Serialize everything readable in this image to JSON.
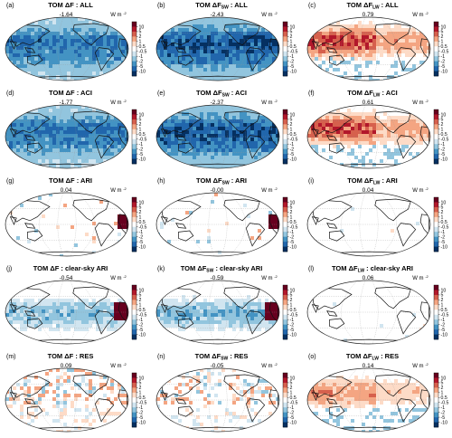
{
  "figure": {
    "colorbar_ticks": [
      "10",
      "5",
      "2",
      "1",
      "0.5",
      "-0.5",
      "-1",
      "-2",
      "-5",
      "-10"
    ],
    "colorbar_colors": [
      "#67001f",
      "#b2182b",
      "#d6604d",
      "#f4a582",
      "#fddbc7",
      "#ffffff",
      "#d1e5f0",
      "#92c5de",
      "#4393c3",
      "#2166ac",
      "#053061"
    ],
    "unit_prefix": "W m",
    "unit_exp": "-2",
    "land_color": "#111111"
  },
  "chart_data": [
    {
      "id": "a",
      "type": "heatmap",
      "label": "(a)",
      "title_prefix": "TOM ΔF",
      "title_sub": "",
      "title_suffix": " : ALL",
      "value": "-1.64",
      "tint": "blue",
      "strength": 0.8
    },
    {
      "id": "b",
      "type": "heatmap",
      "label": "(b)",
      "title_prefix": "TOM ΔF",
      "title_sub": "SW",
      "title_suffix": " : ALL",
      "value": "-2.43",
      "tint": "blue",
      "strength": 1.0
    },
    {
      "id": "c",
      "type": "heatmap",
      "label": "(c)",
      "title_prefix": "TOM ΔF",
      "title_sub": "LW",
      "title_suffix": " : ALL",
      "value": "0.79",
      "tint": "orange",
      "strength": 0.85
    },
    {
      "id": "d",
      "type": "heatmap",
      "label": "(d)",
      "title_prefix": "TOM ΔF",
      "title_sub": "",
      "title_suffix": " : ACI",
      "value": "-1.77",
      "tint": "blue",
      "strength": 0.8
    },
    {
      "id": "e",
      "type": "heatmap",
      "label": "(e)",
      "title_prefix": "TOM ΔF",
      "title_sub": "SW",
      "title_suffix": " : ACI",
      "value": "-2.37",
      "tint": "blue",
      "strength": 1.0
    },
    {
      "id": "f",
      "type": "heatmap",
      "label": "(f)",
      "title_prefix": "TOM ΔF",
      "title_sub": "LW",
      "title_suffix": " : ACI",
      "value": "0.61",
      "tint": "orange",
      "strength": 0.8
    },
    {
      "id": "g",
      "type": "heatmap",
      "label": "(g)",
      "title_prefix": "TOM ΔF",
      "title_sub": "",
      "title_suffix": " : ARI",
      "value": "0.04",
      "tint": "sparse",
      "strength": 0.3
    },
    {
      "id": "h",
      "type": "heatmap",
      "label": "(h)",
      "title_prefix": "TOM ΔF",
      "title_sub": "SW",
      "title_suffix": " : ARI",
      "value": "-0.00",
      "tint": "sparse",
      "strength": 0.3
    },
    {
      "id": "i",
      "type": "heatmap",
      "label": "(i)",
      "title_prefix": "TOM ΔF",
      "title_sub": "LW",
      "title_suffix": " : ARI",
      "value": "0.04",
      "tint": "sparse",
      "strength": 0.1
    },
    {
      "id": "j",
      "type": "heatmap",
      "label": "(j)",
      "title_prefix": "TOM ΔF",
      "title_sub": "",
      "title_suffix": " : clear-sky ARI",
      "value": "-0.54",
      "tint": "lightblue",
      "strength": 0.5
    },
    {
      "id": "k",
      "type": "heatmap",
      "label": "(k)",
      "title_prefix": "TOM ΔF",
      "title_sub": "SW",
      "title_suffix": " : clear-sky ARI",
      "value": "-0.59",
      "tint": "lightblue",
      "strength": 0.55
    },
    {
      "id": "l",
      "type": "heatmap",
      "label": "(l)",
      "title_prefix": "TOM ΔF",
      "title_sub": "LW",
      "title_suffix": " : clear-sky ARI",
      "value": "0.06",
      "tint": "sparse",
      "strength": 0.1
    },
    {
      "id": "m",
      "type": "heatmap",
      "label": "(m)",
      "title_prefix": "TOM ΔF",
      "title_sub": "",
      "title_suffix": " : RES",
      "value": "0.09",
      "tint": "mixed",
      "strength": 0.4
    },
    {
      "id": "n",
      "type": "heatmap",
      "label": "(n)",
      "title_prefix": "TOM ΔF",
      "title_sub": "SW",
      "title_suffix": " : RES",
      "value": "-0.05",
      "tint": "mixed",
      "strength": 0.3
    },
    {
      "id": "o",
      "type": "heatmap",
      "label": "(o)",
      "title_prefix": "TOM ΔF",
      "title_sub": "LW",
      "title_suffix": " : RES",
      "value": "0.14",
      "tint": "orange",
      "strength": 0.45
    }
  ]
}
